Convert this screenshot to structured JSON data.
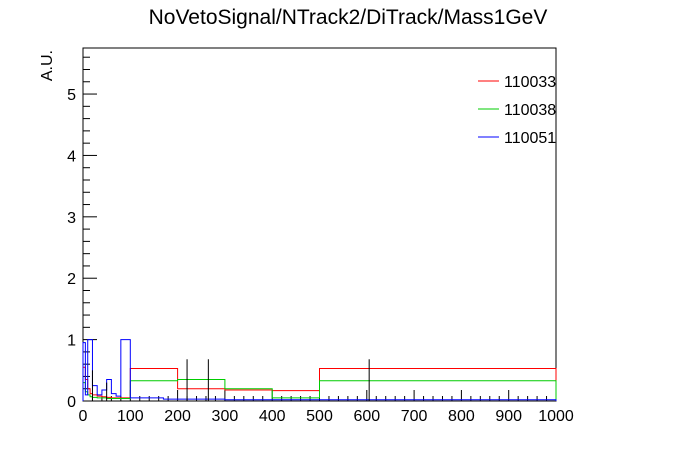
{
  "chart_data": {
    "type": "step-histogram",
    "title": "NoVetoSignal/NTrack2/DiTrack/Mass1GeV",
    "xlabel": "",
    "ylabel": "A.U.",
    "xlim": [
      0,
      1000
    ],
    "ylim": [
      0,
      5.75
    ],
    "x_ticks": [
      "0",
      "100",
      "200",
      "300",
      "400",
      "500",
      "600",
      "700",
      "800",
      "900",
      "1000"
    ],
    "y_ticks": [
      "0",
      "1",
      "2",
      "3",
      "4",
      "5"
    ],
    "grid": false,
    "legend_position": "top-right",
    "series": [
      {
        "name": "110033",
        "color": "#ff0000",
        "edges": [
          0,
          5,
          10,
          15,
          20,
          30,
          40,
          50,
          60,
          70,
          80,
          100,
          200,
          300,
          400,
          500,
          1000
        ],
        "values": [
          0.55,
          0.35,
          0.2,
          0.12,
          0.1,
          0.08,
          0.07,
          0.06,
          0.05,
          0.05,
          0.05,
          0.53,
          0.2,
          0.18,
          0.17,
          0.53
        ]
      },
      {
        "name": "110038",
        "color": "#00cc00",
        "edges": [
          0,
          5,
          10,
          15,
          20,
          30,
          40,
          50,
          60,
          70,
          80,
          100,
          200,
          300,
          400,
          500,
          1000
        ],
        "values": [
          0.3,
          0.15,
          0.1,
          0.07,
          0.06,
          0.05,
          0.05,
          0.04,
          0.04,
          0.04,
          0.04,
          0.33,
          0.35,
          0.2,
          0.05,
          0.33
        ]
      },
      {
        "name": "110051",
        "color": "#0000ff",
        "edges": [
          0,
          5,
          10,
          20,
          30,
          40,
          50,
          60,
          70,
          80,
          90,
          100,
          170,
          300,
          400,
          500,
          1000
        ],
        "values": [
          0.95,
          0.1,
          1.0,
          0.25,
          0.1,
          0.18,
          0.35,
          0.12,
          0.08,
          1.0,
          1.0,
          0.05,
          0.03,
          0.02,
          0.02,
          0.02
        ]
      }
    ],
    "error_bars": [
      {
        "x": 220,
        "low": 0,
        "high": 0.68
      },
      {
        "x": 265,
        "low": 0,
        "high": 0.68
      },
      {
        "x": 605,
        "low": 0,
        "high": 0.68
      },
      {
        "x": 20,
        "low": 0,
        "high": 0.5
      },
      {
        "x": 50,
        "low": 0,
        "high": 0.3
      }
    ]
  }
}
